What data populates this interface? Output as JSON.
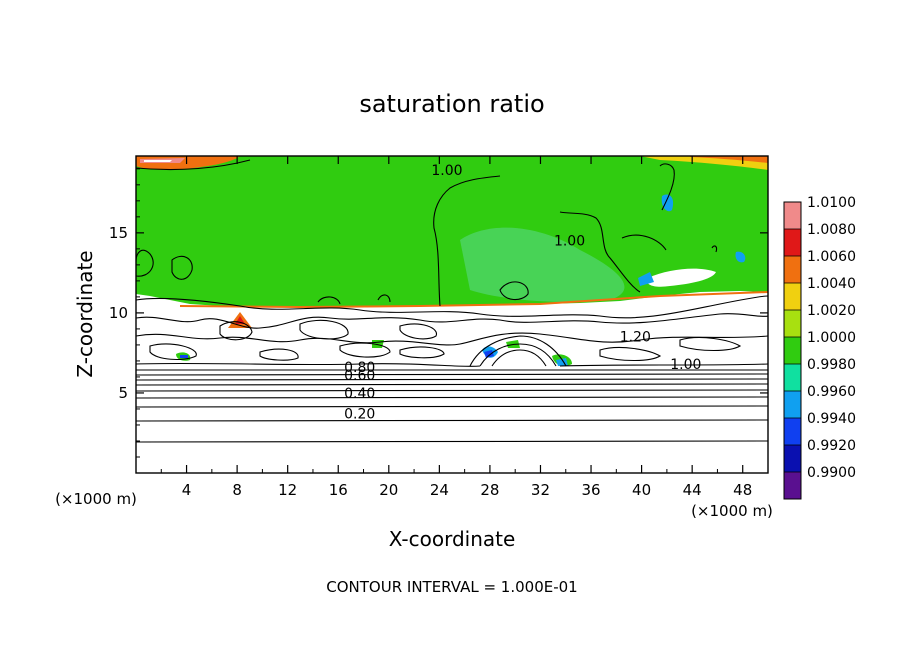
{
  "chart_data": {
    "type": "heatmap",
    "title": "saturation ratio",
    "xlabel": "X-coordinate",
    "ylabel": "Z-coordinate",
    "x_unit": "(×1000 m)",
    "y_unit": "(×1000 m)",
    "xlim": [
      0,
      50
    ],
    "ylim": [
      0,
      19.8
    ],
    "x_ticks": [
      "4",
      "8",
      "12",
      "16",
      "20",
      "24",
      "28",
      "32",
      "36",
      "40",
      "44",
      "48"
    ],
    "y_ticks": [
      "5",
      "10",
      "15"
    ],
    "footer": "CONTOUR INTERVAL = 1.000E-01",
    "colorbar": {
      "labels": [
        "1.0100",
        "1.0080",
        "1.0060",
        "1.0040",
        "1.0020",
        "1.0000",
        "0.9980",
        "0.9960",
        "0.9940",
        "0.9920",
        "0.9900"
      ],
      "colors": [
        "#f08a8a",
        "#e01818",
        "#f07010",
        "#f0d010",
        "#a8e010",
        "#30cc10",
        "#10e0a0",
        "#10a0f0",
        "#1040f0",
        "#0a10b0",
        "#5a1090"
      ]
    },
    "contour_labels": [
      {
        "text": "1.00",
        "x": 24.6,
        "z": 18.6
      },
      {
        "text": "1.00",
        "x": 34.3,
        "z": 14.2
      },
      {
        "text": "1.20",
        "x": 39.5,
        "z": 8.2
      },
      {
        "text": "1.00",
        "x": 43.5,
        "z": 6.5
      },
      {
        "text": "0.80",
        "x": 17.7,
        "z": 6.3
      },
      {
        "text": "0.60",
        "x": 17.7,
        "z": 5.8
      },
      {
        "text": "0.40",
        "x": 17.7,
        "z": 4.7
      },
      {
        "text": "0.20",
        "x": 17.7,
        "z": 3.4
      }
    ],
    "grid": false,
    "legend_position": "right"
  }
}
